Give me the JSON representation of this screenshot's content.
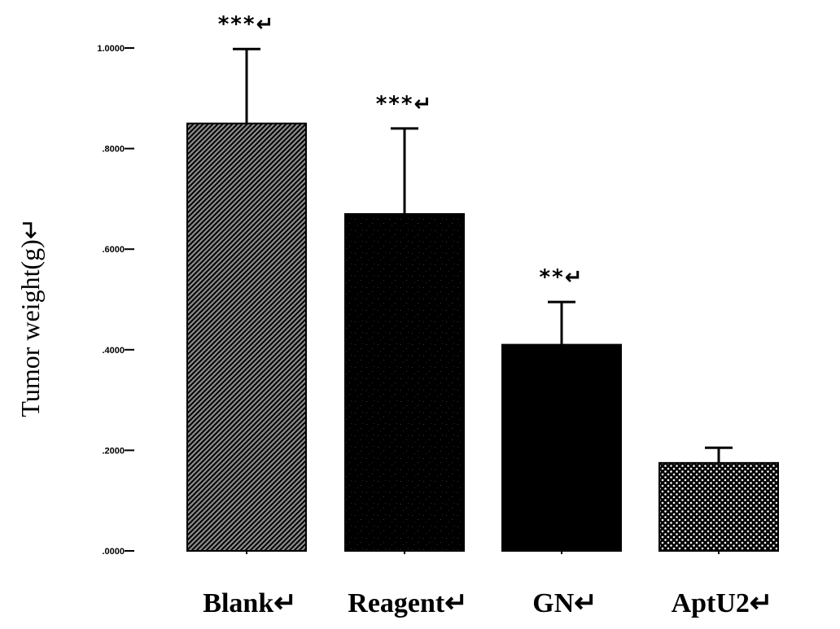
{
  "chart_data": {
    "type": "bar",
    "categories": [
      "Blank↵",
      "Reagent↵",
      "GN↵",
      "AptU2↵"
    ],
    "values": [
      0.85,
      0.67,
      0.41,
      0.175
    ],
    "errors": [
      0.148,
      0.17,
      0.085,
      0.03
    ],
    "significance": [
      "***↵",
      "***↵",
      "**↵",
      ""
    ],
    "ylabel": "Tumor weight(g)↵",
    "ylim": [
      0.0,
      1.0
    ],
    "yticks": [
      0.0,
      0.2,
      0.4,
      0.6,
      0.8,
      1.0
    ],
    "ytick_labels": [
      ".0000",
      ".2000",
      ".4000",
      ".6000",
      ".8000",
      "1.0000"
    ],
    "bar_styles": [
      "diagonal-hatch",
      "dark-speckle",
      "solid-black",
      "dots"
    ],
    "colors": {
      "bar": "#000000",
      "background": "#ffffff",
      "axis": "#000000"
    }
  }
}
